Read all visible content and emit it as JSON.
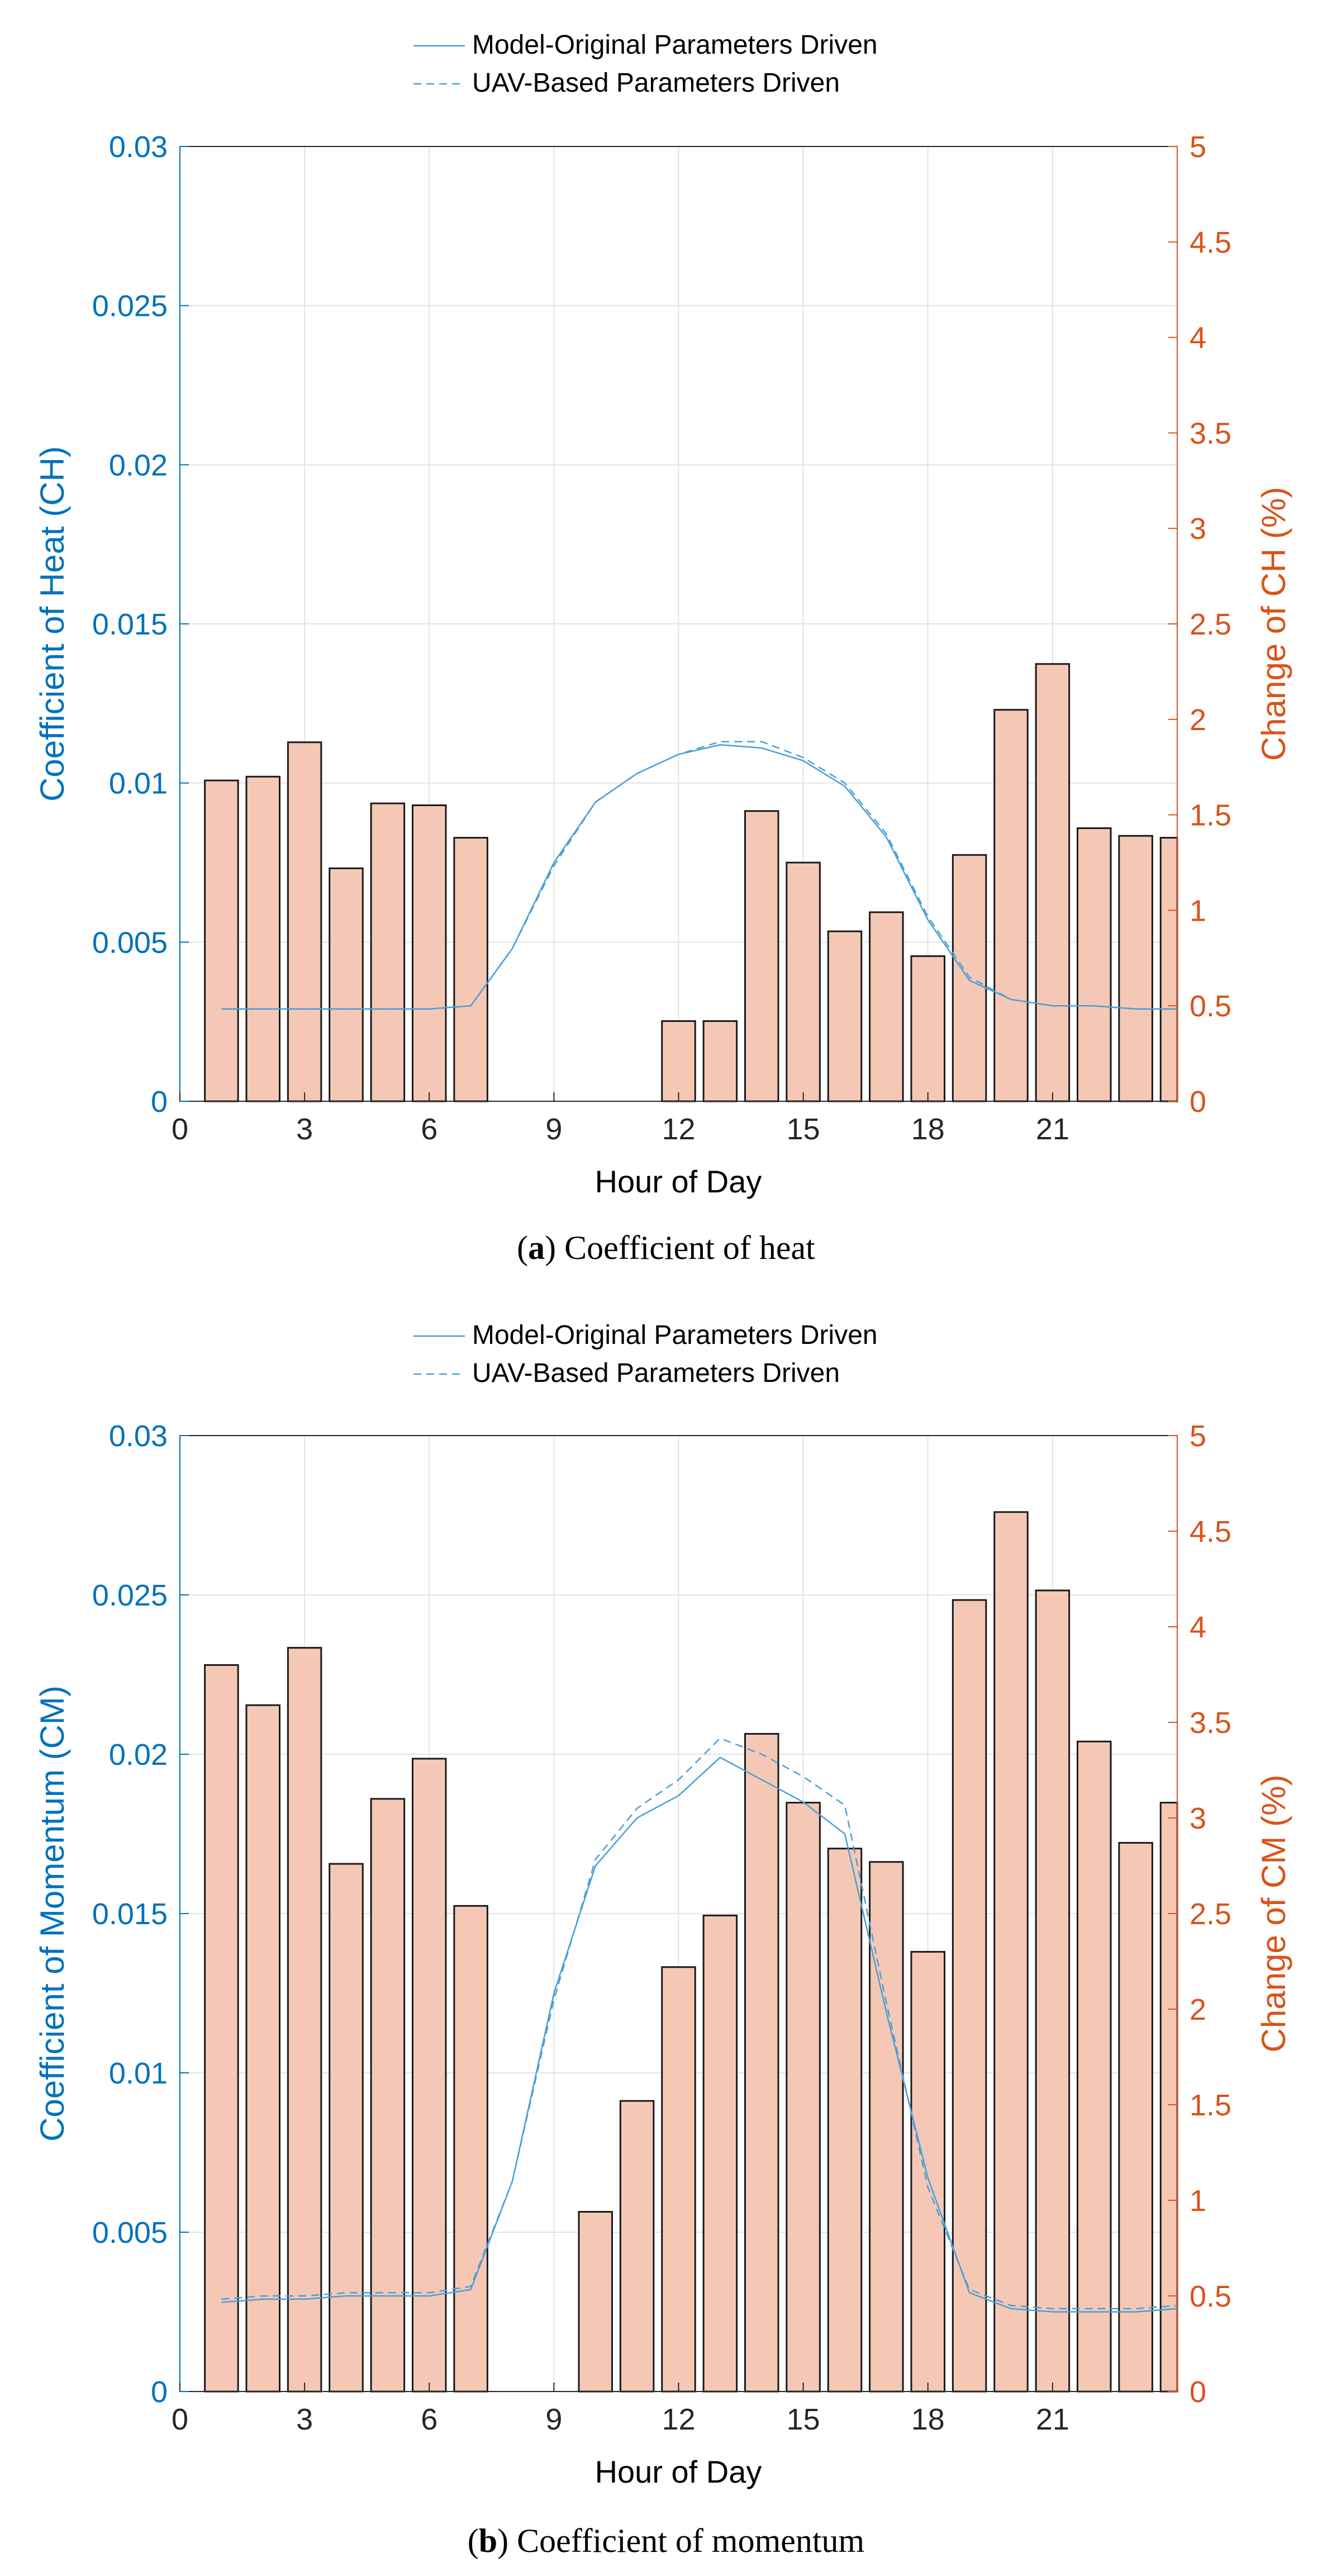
{
  "colors": {
    "left_axis": "#0072BD",
    "right_axis": "#D95319",
    "line": "#4A9FD4",
    "bar_fill": "#F5C8B6",
    "bar_edge": "#1a1a1a",
    "grid": "#E3E3E3",
    "frame": "#262626",
    "text": "#000000"
  },
  "chart_data": [
    {
      "type": "bar+line",
      "caption_label": "a",
      "caption_text": "Coefficient of heat",
      "xlabel": "Hour of Day",
      "ylabel_left": "Coefficient of Heat (CH)",
      "ylabel_right": "Change of CH (%)",
      "xlim": [
        0,
        24
      ],
      "xticks": [
        0,
        3,
        6,
        9,
        12,
        15,
        18,
        21
      ],
      "ylim_left": [
        0,
        0.03
      ],
      "yticks_left": [
        "0",
        "0.005",
        "0.01",
        "0.015",
        "0.02",
        "0.025",
        "0.03"
      ],
      "ylim_right": [
        0,
        5
      ],
      "yticks_right": [
        "0",
        "0.5",
        "1",
        "1.5",
        "2",
        "2.5",
        "3",
        "3.5",
        "4",
        "4.5",
        "5"
      ],
      "legend": [
        "Model-Original Parameters Driven",
        "UAV-Based Parameters Driven"
      ],
      "bars": {
        "name": "Change of CH (%)",
        "x": [
          1,
          2,
          3,
          4,
          5,
          6,
          7,
          8,
          9,
          10,
          11,
          12,
          13,
          14,
          15,
          16,
          17,
          18,
          19,
          20,
          21,
          22,
          23,
          24
        ],
        "values": [
          1.68,
          1.7,
          1.88,
          1.22,
          1.56,
          1.55,
          1.38,
          0,
          0,
          0,
          0,
          0.42,
          0.42,
          1.52,
          1.25,
          0.89,
          0.99,
          0.76,
          1.29,
          2.05,
          2.29,
          1.43,
          1.39,
          1.38
        ]
      },
      "series": [
        {
          "name": "Model-Original Parameters Driven",
          "style": "solid",
          "x": [
            1,
            2,
            3,
            4,
            5,
            6,
            7,
            8,
            9,
            10,
            11,
            12,
            13,
            14,
            15,
            16,
            17,
            18,
            19,
            20,
            21,
            22,
            23,
            24
          ],
          "values": [
            0.0029,
            0.0029,
            0.0029,
            0.0029,
            0.0029,
            0.0029,
            0.003,
            0.0048,
            0.0075,
            0.0094,
            0.0103,
            0.0109,
            0.0112,
            0.0111,
            0.0107,
            0.0099,
            0.0083,
            0.0057,
            0.0038,
            0.0032,
            0.003,
            0.003,
            0.0029,
            0.0029
          ]
        },
        {
          "name": "UAV-Based Parameters Driven",
          "style": "dashed",
          "x": [
            1,
            2,
            3,
            4,
            5,
            6,
            7,
            8,
            9,
            10,
            11,
            12,
            13,
            14,
            15,
            16,
            17,
            18,
            19,
            20,
            21,
            22,
            23,
            24
          ],
          "values": [
            0.0029,
            0.0029,
            0.0029,
            0.0029,
            0.0029,
            0.0029,
            0.003,
            0.0048,
            0.0074,
            0.0094,
            0.0103,
            0.0109,
            0.0113,
            0.0113,
            0.0108,
            0.01,
            0.0084,
            0.0058,
            0.0039,
            0.0032,
            0.003,
            0.003,
            0.0029,
            0.0029
          ]
        }
      ]
    },
    {
      "type": "bar+line",
      "caption_label": "b",
      "caption_text": "Coefficient of momentum",
      "xlabel": "Hour of Day",
      "ylabel_left": "Coefficient of Momentum (CM)",
      "ylabel_right": "Change of CM (%)",
      "xlim": [
        0,
        24
      ],
      "xticks": [
        0,
        3,
        6,
        9,
        12,
        15,
        18,
        21
      ],
      "ylim_left": [
        0,
        0.03
      ],
      "yticks_left": [
        "0",
        "0.005",
        "0.01",
        "0.015",
        "0.02",
        "0.025",
        "0.03"
      ],
      "ylim_right": [
        0,
        5
      ],
      "yticks_right": [
        "0",
        "0.5",
        "1",
        "1.5",
        "2",
        "2.5",
        "3",
        "3.5",
        "4",
        "4.5",
        "5"
      ],
      "legend": [
        "Model-Original Parameters Driven",
        "UAV-Based Parameters Driven"
      ],
      "bars": {
        "name": "Change of CM (%)",
        "x": [
          1,
          2,
          3,
          4,
          5,
          6,
          7,
          8,
          9,
          10,
          11,
          12,
          13,
          14,
          15,
          16,
          17,
          18,
          19,
          20,
          21,
          22,
          23,
          24
        ],
        "values": [
          3.8,
          3.59,
          3.89,
          2.76,
          3.1,
          3.31,
          2.54,
          0,
          0,
          0.94,
          1.52,
          2.22,
          2.49,
          3.44,
          3.08,
          2.84,
          2.77,
          2.3,
          4.14,
          4.6,
          4.19,
          3.4,
          2.87,
          3.08
        ]
      },
      "series": [
        {
          "name": "Model-Original Parameters Driven",
          "style": "solid",
          "x": [
            1,
            2,
            3,
            4,
            5,
            6,
            7,
            8,
            9,
            10,
            11,
            12,
            13,
            14,
            15,
            16,
            17,
            18,
            19,
            20,
            21,
            22,
            23,
            24
          ],
          "values": [
            0.0028,
            0.0029,
            0.0029,
            0.003,
            0.003,
            0.003,
            0.0032,
            0.0066,
            0.0125,
            0.0165,
            0.018,
            0.0187,
            0.0199,
            0.0192,
            0.0185,
            0.0175,
            0.0119,
            0.0067,
            0.0031,
            0.0026,
            0.0025,
            0.0025,
            0.0025,
            0.0026
          ]
        },
        {
          "name": "UAV-Based Parameters Driven",
          "style": "dashed",
          "x": [
            1,
            2,
            3,
            4,
            5,
            6,
            7,
            8,
            9,
            10,
            11,
            12,
            13,
            14,
            15,
            16,
            17,
            18,
            19,
            20,
            21,
            22,
            23,
            24
          ],
          "values": [
            0.0029,
            0.003,
            0.003,
            0.0031,
            0.0031,
            0.0031,
            0.0033,
            0.0066,
            0.0123,
            0.0167,
            0.0183,
            0.0192,
            0.0205,
            0.02,
            0.0193,
            0.0184,
            0.0122,
            0.0064,
            0.0032,
            0.0027,
            0.0026,
            0.0026,
            0.0026,
            0.0027
          ]
        }
      ]
    }
  ]
}
